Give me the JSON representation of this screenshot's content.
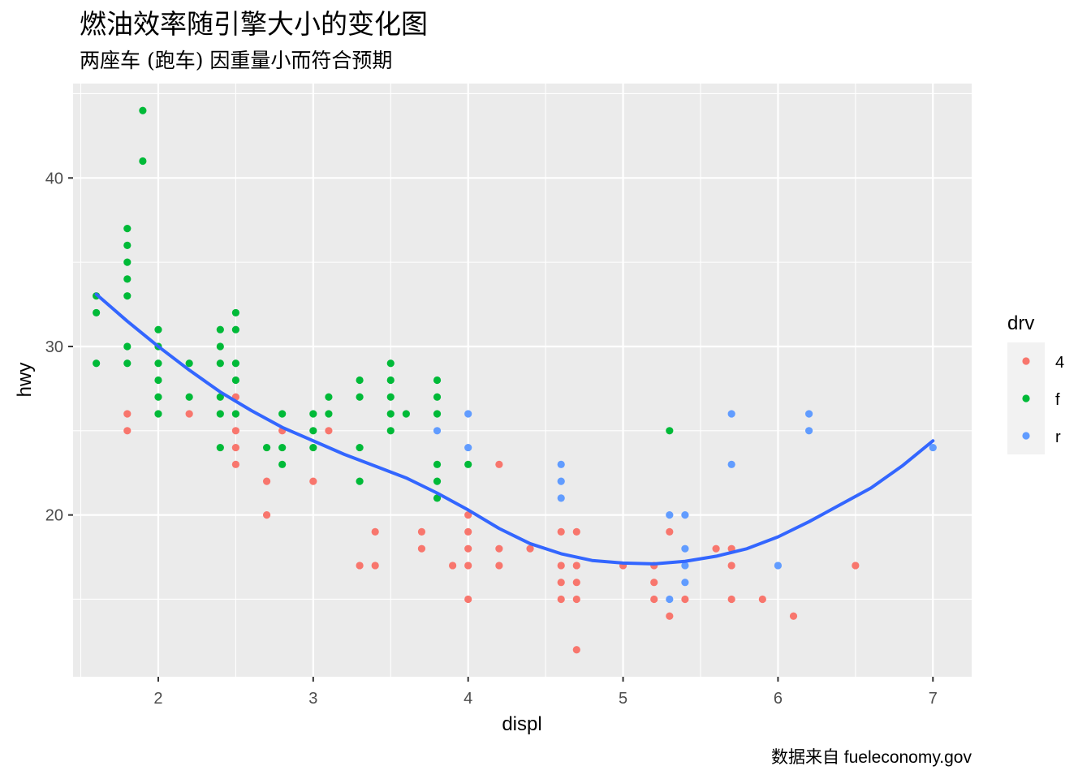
{
  "chart_data": {
    "type": "scatter",
    "title": "燃油效率随引擎大小的变化图",
    "subtitle": "两座车 (跑车) 因重量小而符合预期",
    "caption": "数据来自 fueleconomy.gov",
    "xlabel": "displ",
    "ylabel": "hwy",
    "xlim": [
      1.45,
      7.25
    ],
    "ylim": [
      10.4,
      45.6
    ],
    "x_ticks": [
      2,
      3,
      4,
      5,
      6,
      7
    ],
    "y_ticks": [
      20,
      30,
      40
    ],
    "grid": true,
    "legend": {
      "title": "drv",
      "position": "right",
      "entries": [
        "4",
        "f",
        "r"
      ]
    },
    "colors": {
      "4": "#F8766D",
      "f": "#00BA38",
      "r": "#619CFF",
      "smooth": "#3366FF",
      "panel_bg": "#EBEBEB",
      "grid": "#FFFFFF"
    },
    "series": [
      {
        "name": "4",
        "points": [
          [
            1.8,
            26
          ],
          [
            1.8,
            25
          ],
          [
            2.2,
            26
          ],
          [
            2.5,
            27
          ],
          [
            2.5,
            25
          ],
          [
            2.5,
            24
          ],
          [
            2.5,
            23
          ],
          [
            2.7,
            22
          ],
          [
            2.7,
            20
          ],
          [
            2.8,
            25
          ],
          [
            3.0,
            22
          ],
          [
            3.1,
            25
          ],
          [
            3.3,
            17
          ],
          [
            3.4,
            19
          ],
          [
            3.4,
            17
          ],
          [
            3.7,
            19
          ],
          [
            3.7,
            18
          ],
          [
            3.9,
            17
          ],
          [
            4.0,
            20
          ],
          [
            4.0,
            19
          ],
          [
            4.0,
            18
          ],
          [
            4.0,
            17
          ],
          [
            4.0,
            15
          ],
          [
            4.2,
            23
          ],
          [
            4.2,
            18
          ],
          [
            4.2,
            17
          ],
          [
            4.4,
            18
          ],
          [
            4.6,
            19
          ],
          [
            4.6,
            17
          ],
          [
            4.6,
            16
          ],
          [
            4.6,
            15
          ],
          [
            4.7,
            19
          ],
          [
            4.7,
            17
          ],
          [
            4.7,
            16
          ],
          [
            4.7,
            15
          ],
          [
            4.7,
            12
          ],
          [
            5.0,
            17
          ],
          [
            5.2,
            17
          ],
          [
            5.2,
            16
          ],
          [
            5.2,
            15
          ],
          [
            5.3,
            19
          ],
          [
            5.3,
            14
          ],
          [
            5.4,
            15
          ],
          [
            5.6,
            18
          ],
          [
            5.7,
            18
          ],
          [
            5.7,
            17
          ],
          [
            5.7,
            15
          ],
          [
            5.9,
            15
          ],
          [
            6.1,
            14
          ],
          [
            6.5,
            17
          ]
        ]
      },
      {
        "name": "f",
        "points": [
          [
            1.6,
            33
          ],
          [
            1.6,
            32
          ],
          [
            1.6,
            29
          ],
          [
            1.8,
            37
          ],
          [
            1.8,
            36
          ],
          [
            1.8,
            35
          ],
          [
            1.8,
            34
          ],
          [
            1.8,
            33
          ],
          [
            1.8,
            30
          ],
          [
            1.8,
            29
          ],
          [
            1.9,
            44
          ],
          [
            1.9,
            41
          ],
          [
            2.0,
            31
          ],
          [
            2.0,
            30
          ],
          [
            2.0,
            29
          ],
          [
            2.0,
            28
          ],
          [
            2.0,
            27
          ],
          [
            2.0,
            26
          ],
          [
            2.2,
            29
          ],
          [
            2.2,
            27
          ],
          [
            2.4,
            31
          ],
          [
            2.4,
            30
          ],
          [
            2.4,
            29
          ],
          [
            2.4,
            27
          ],
          [
            2.4,
            26
          ],
          [
            2.4,
            24
          ],
          [
            2.5,
            32
          ],
          [
            2.5,
            31
          ],
          [
            2.5,
            29
          ],
          [
            2.5,
            28
          ],
          [
            2.5,
            26
          ],
          [
            2.7,
            24
          ],
          [
            2.8,
            26
          ],
          [
            2.8,
            24
          ],
          [
            2.8,
            23
          ],
          [
            3.0,
            26
          ],
          [
            3.0,
            25
          ],
          [
            3.0,
            24
          ],
          [
            3.1,
            27
          ],
          [
            3.1,
            26
          ],
          [
            3.3,
            28
          ],
          [
            3.3,
            27
          ],
          [
            3.3,
            24
          ],
          [
            3.3,
            22
          ],
          [
            3.5,
            29
          ],
          [
            3.5,
            28
          ],
          [
            3.5,
            27
          ],
          [
            3.5,
            26
          ],
          [
            3.5,
            25
          ],
          [
            3.6,
            26
          ],
          [
            3.8,
            28
          ],
          [
            3.8,
            27
          ],
          [
            3.8,
            26
          ],
          [
            3.8,
            23
          ],
          [
            3.8,
            22
          ],
          [
            3.8,
            21
          ],
          [
            4.0,
            23
          ],
          [
            5.3,
            25
          ]
        ]
      },
      {
        "name": "r",
        "points": [
          [
            3.8,
            25
          ],
          [
            4.0,
            26
          ],
          [
            4.0,
            24
          ],
          [
            4.6,
            23
          ],
          [
            4.6,
            22
          ],
          [
            4.6,
            21
          ],
          [
            5.3,
            20
          ],
          [
            5.3,
            15
          ],
          [
            5.4,
            20
          ],
          [
            5.4,
            18
          ],
          [
            5.4,
            17
          ],
          [
            5.4,
            16
          ],
          [
            5.7,
            26
          ],
          [
            5.7,
            23
          ],
          [
            6.0,
            17
          ],
          [
            6.2,
            26
          ],
          [
            6.2,
            25
          ],
          [
            7.0,
            24
          ]
        ]
      }
    ],
    "smooth_line": [
      [
        1.6,
        33.1
      ],
      [
        1.8,
        31.5
      ],
      [
        2.0,
        30.0
      ],
      [
        2.2,
        28.6
      ],
      [
        2.4,
        27.3
      ],
      [
        2.6,
        26.2
      ],
      [
        2.8,
        25.2
      ],
      [
        3.0,
        24.4
      ],
      [
        3.2,
        23.6
      ],
      [
        3.4,
        22.9
      ],
      [
        3.6,
        22.2
      ],
      [
        3.8,
        21.3
      ],
      [
        4.0,
        20.3
      ],
      [
        4.2,
        19.2
      ],
      [
        4.4,
        18.3
      ],
      [
        4.6,
        17.7
      ],
      [
        4.8,
        17.3
      ],
      [
        5.0,
        17.15
      ],
      [
        5.2,
        17.1
      ],
      [
        5.4,
        17.25
      ],
      [
        5.6,
        17.55
      ],
      [
        5.8,
        18.0
      ],
      [
        6.0,
        18.7
      ],
      [
        6.2,
        19.6
      ],
      [
        6.4,
        20.6
      ],
      [
        6.6,
        21.6
      ],
      [
        6.8,
        22.9
      ],
      [
        7.0,
        24.4
      ]
    ]
  }
}
